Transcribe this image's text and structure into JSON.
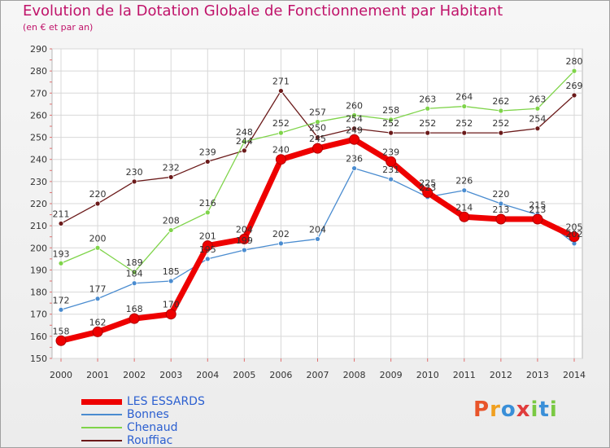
{
  "title": "Evolution de la Dotation Globale de Fonctionnement par Habitant",
  "subtitle": "(en € et par an)",
  "logo_text": "Proxiti",
  "chart_data": {
    "type": "line",
    "title": "Evolution de la Dotation Globale de Fonctionnement par Habitant",
    "subtitle": "(en € et par an)",
    "x": [
      2000,
      2001,
      2002,
      2003,
      2004,
      2005,
      2006,
      2007,
      2008,
      2009,
      2010,
      2011,
      2012,
      2013,
      2014
    ],
    "ylim": [
      150,
      290
    ],
    "yticks": [
      150,
      160,
      170,
      180,
      190,
      200,
      210,
      220,
      230,
      240,
      250,
      260,
      270,
      280,
      290
    ],
    "grid": true,
    "legend_position": "bottom-left",
    "series": [
      {
        "name": "Rouffiac",
        "color": "#6b1a1a",
        "values": [
          211,
          220,
          230,
          232,
          239,
          244,
          271,
          250,
          254,
          252,
          252,
          252,
          252,
          254,
          269
        ]
      },
      {
        "name": "Chenaud",
        "color": "#7fd44a",
        "values": [
          193,
          200,
          189,
          208,
          216,
          248,
          252,
          257,
          260,
          258,
          263,
          264,
          262,
          263,
          280
        ]
      },
      {
        "name": "Bonnes",
        "color": "#4a8cd0",
        "values": [
          172,
          177,
          184,
          185,
          195,
          199,
          202,
          204,
          236,
          231,
          223,
          226,
          220,
          215,
          202
        ]
      },
      {
        "name": "LES ESSARDS",
        "color": "#ee0000",
        "values": [
          158,
          162,
          168,
          170,
          201,
          204,
          240,
          245,
          249,
          239,
          225,
          214,
          213,
          213,
          205
        ]
      }
    ]
  }
}
